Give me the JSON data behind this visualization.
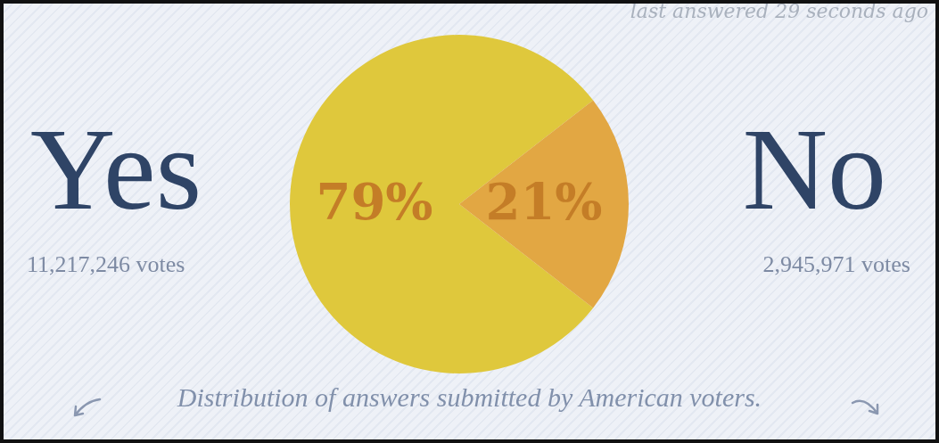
{
  "chart_data": {
    "type": "pie",
    "categories": [
      "Yes",
      "No"
    ],
    "values": [
      79,
      21
    ],
    "colors": [
      "#dfc83c",
      "#e2a743"
    ],
    "value_labels": [
      "79%",
      "21%"
    ],
    "legend": false,
    "annotations": [
      "last answered 29 seconds ago",
      "11,217,246 votes",
      "2,945,971 votes",
      "Distribution of answers submitted by American voters."
    ]
  }
}
